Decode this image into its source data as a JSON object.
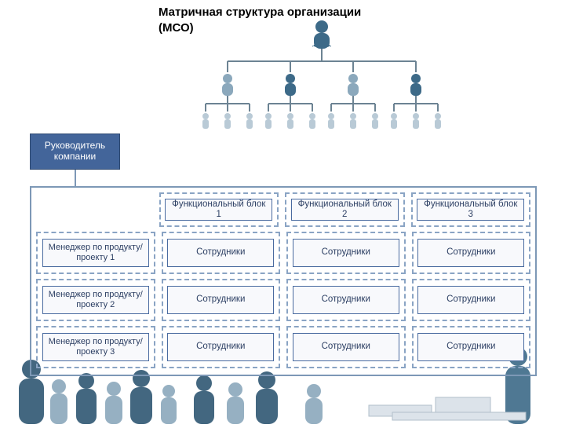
{
  "title": "Матричная структура организации\n(МСО)",
  "diagram": {
    "type": "org-matrix",
    "background_color": "#ffffff",
    "figure_colors": {
      "primary": "#3d6a88",
      "secondary": "#8ba8bc",
      "light": "#b9cad6"
    },
    "connector_color": "#6c8393",
    "head_box": {
      "label": "Руководитель\nкомпании",
      "bg": "#43659a",
      "fg": "#ffffff",
      "font_size": 12
    },
    "outer_border_color": "#7d98b6",
    "cell_border_color": "#8aa4c4",
    "cell_border_style": "dashed",
    "inner_cell_border": "#4a6ba0",
    "inner_cell_bg": "#f8f9fc",
    "inner_cell_fg": "#2c3f63",
    "columns": [
      "Функциональный блок 1",
      "Функциональный блок 2",
      "Функциональный блок 3"
    ],
    "rows": [
      {
        "manager": "Менеджер по продукту/ проекту 1",
        "cells": [
          "Сотрудники",
          "Сотрудники",
          "Сотрудники"
        ]
      },
      {
        "manager": "Менеджер по продукту/ проекту 2",
        "cells": [
          "Сотрудники",
          "Сотрудники",
          "Сотрудники"
        ]
      },
      {
        "manager": "Менеджер по продукту/ проекту 3",
        "cells": [
          "Сотрудники",
          "Сотрудники",
          "Сотрудники"
        ]
      }
    ],
    "font_family": "Arial",
    "title_fontsize": 15,
    "cell_fontsize": 11.5,
    "mgr_fontsize": 11
  }
}
